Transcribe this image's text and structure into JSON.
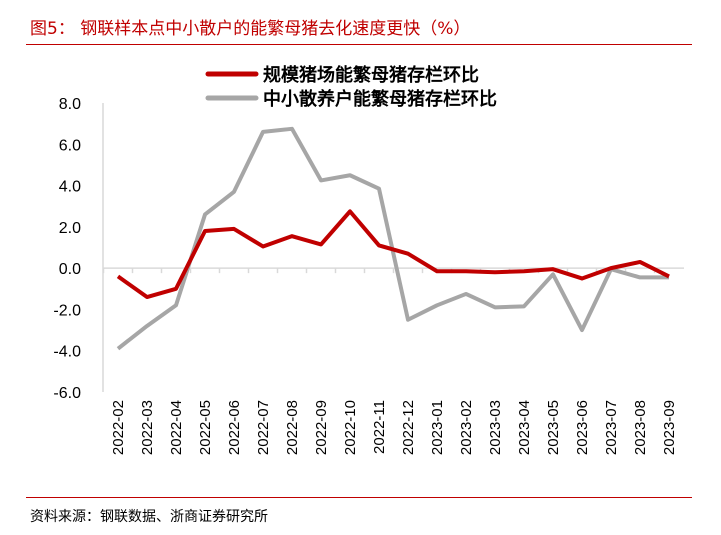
{
  "title": "图5： 钢联样本点中小散户的能繁母猪去化速度更快（%）",
  "source": "资料来源：钢联数据、浙商证券研究所",
  "chart_data": {
    "type": "line",
    "categories": [
      "2022-02",
      "2022-03",
      "2022-04",
      "2022-05",
      "2022-06",
      "2022-07",
      "2022-08",
      "2022-09",
      "2022-10",
      "2022-11",
      "2022-12",
      "2023-01",
      "2023-02",
      "2023-03",
      "2023-04",
      "2023-05",
      "2023-06",
      "2023-07",
      "2023-08",
      "2023-09"
    ],
    "ylim": [
      -6,
      8
    ],
    "yticks": [
      -6,
      -4,
      -2,
      0,
      2,
      4,
      6,
      8
    ],
    "ytick_labels": [
      "-6.0",
      "-4.0",
      "-2.0",
      "0.0",
      "2.0",
      "4.0",
      "6.0",
      "8.0"
    ],
    "legend_position": "top",
    "grid": false,
    "series": [
      {
        "name": "规模猪场能繁母猪存栏环比",
        "color": "#c00000",
        "values": [
          -0.4,
          -1.4,
          -1.0,
          1.8,
          1.9,
          1.05,
          1.55,
          1.15,
          2.75,
          1.1,
          0.7,
          -0.15,
          -0.15,
          -0.2,
          -0.15,
          -0.05,
          -0.5,
          0.0,
          0.3,
          -0.4
        ]
      },
      {
        "name": "中小散养户能繁母猪存栏环比",
        "color": "#a6a6a6",
        "values": [
          -3.9,
          -2.8,
          -1.8,
          2.6,
          3.7,
          6.6,
          6.75,
          4.25,
          4.5,
          3.85,
          -2.5,
          -1.8,
          -1.25,
          -1.9,
          -1.85,
          -0.3,
          -3.0,
          -0.05,
          -0.45,
          -0.45
        ]
      }
    ]
  }
}
